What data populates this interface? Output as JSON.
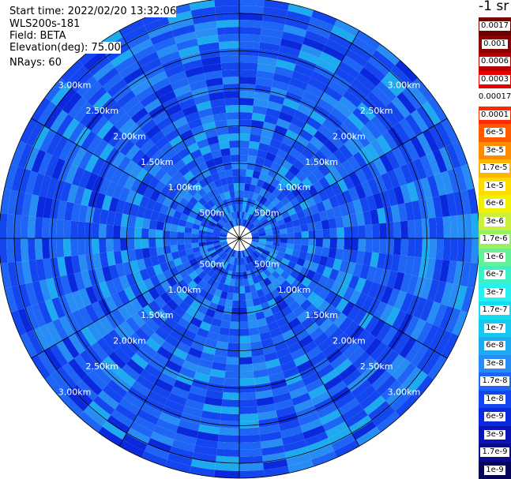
{
  "info": {
    "start_time": "Start time: 2022/02/20 13:32:06",
    "instrument": "WLS200s-181",
    "field": "Field: BETA",
    "elevation": "Elevation(deg): 75.00",
    "nrays": "NRays: 60"
  },
  "units_label": "-1 sr",
  "colors": {
    "grid": "#000000",
    "background": "#ffffff"
  },
  "chart_data": {
    "type": "heatmap",
    "projection": "polar",
    "field": "BETA",
    "n_rays": 60,
    "range_rings": [
      {
        "value": 0.5,
        "label": "500m"
      },
      {
        "value": 1.0,
        "label": "1.00km"
      },
      {
        "value": 1.5,
        "label": "1.50km"
      },
      {
        "value": 2.0,
        "label": "2.00km"
      },
      {
        "value": 2.5,
        "label": "2.50km"
      },
      {
        "value": 3.0,
        "label": "3.00km"
      }
    ],
    "radial_spokes_deg": [
      0,
      30,
      60,
      90,
      120,
      150,
      180,
      210,
      240,
      270,
      300,
      330
    ],
    "dominant_range": "1e-8 to 6e-8",
    "colorbar": [
      {
        "label": "0.0017",
        "color": "#6e0000"
      },
      {
        "label": "0.001",
        "color": "#8c0000"
      },
      {
        "label": "0.0006",
        "color": "#b40000"
      },
      {
        "label": "0.0003",
        "color": "#e60000"
      },
      {
        "label": "0.00017",
        "color": "#ffffff"
      },
      {
        "label": "0.0001",
        "color": "#ff2a00"
      },
      {
        "label": "6e-5",
        "color": "#ff5a00"
      },
      {
        "label": "3e-5",
        "color": "#ff8c00"
      },
      {
        "label": "1.7e-5",
        "color": "#ffb400"
      },
      {
        "label": "1e-5",
        "color": "#ffdc00"
      },
      {
        "label": "6e-6",
        "color": "#f0f000"
      },
      {
        "label": "3e-6",
        "color": "#c8f03c"
      },
      {
        "label": "1.7e-6",
        "color": "#96f064"
      },
      {
        "label": "1e-6",
        "color": "#64f096"
      },
      {
        "label": "6e-7",
        "color": "#3cf0c8"
      },
      {
        "label": "3e-7",
        "color": "#28f0f0"
      },
      {
        "label": "1.7e-7",
        "color": "#14dcf0"
      },
      {
        "label": "1e-7",
        "color": "#14c8f0"
      },
      {
        "label": "6e-8",
        "color": "#1eaaf0"
      },
      {
        "label": "3e-8",
        "color": "#288cf5"
      },
      {
        "label": "1.7e-8",
        "color": "#1e64f5"
      },
      {
        "label": "1e-8",
        "color": "#1446f0"
      },
      {
        "label": "6e-9",
        "color": "#0a28dc"
      },
      {
        "label": "3e-9",
        "color": "#0a14b4"
      },
      {
        "label": "1.7e-9",
        "color": "#0a0a8c"
      },
      {
        "label": "1e-9",
        "color": "#05055a"
      }
    ]
  }
}
